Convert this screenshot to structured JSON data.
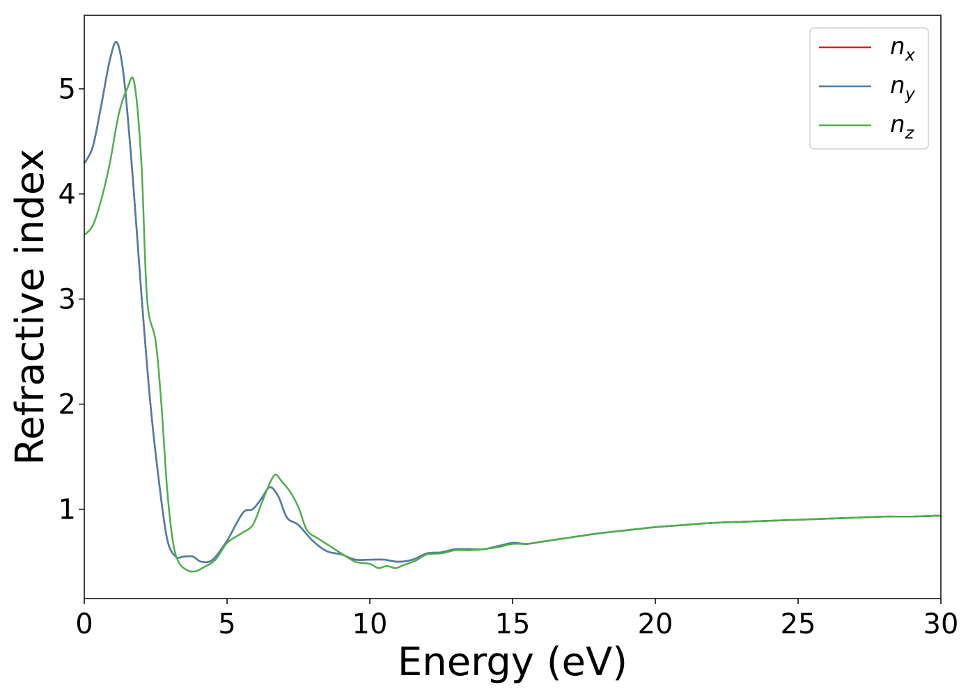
{
  "chart_data": {
    "type": "line",
    "title": "",
    "xlabel": "Energy (eV)",
    "ylabel": "Refractive index",
    "xlim": [
      0,
      30
    ],
    "ylim": [
      0.15,
      5.7
    ],
    "xticks": [
      0,
      5,
      10,
      15,
      20,
      25,
      30
    ],
    "yticks": [
      1,
      2,
      3,
      4,
      5
    ],
    "grid": false,
    "legend_position": "top-right",
    "series": [
      {
        "name": "n_x",
        "legend_base": "n",
        "legend_sub": "x",
        "color": "#e41a1c",
        "x": [
          0,
          0.3,
          0.6,
          0.9,
          1.15,
          1.4,
          1.7,
          2.0,
          2.3,
          2.6,
          2.9,
          3.2,
          3.5,
          3.8,
          4.1,
          4.5,
          5.0,
          5.3,
          5.6,
          5.9,
          6.2,
          6.5,
          6.8,
          7.1,
          7.5,
          8.0,
          8.5,
          9.0,
          9.5,
          10.0,
          10.5,
          11.0,
          11.5,
          12.0,
          12.5,
          13.0,
          13.5,
          14.0,
          14.5,
          15.0,
          15.5,
          16.0,
          17.0,
          18.0,
          19.0,
          20.0,
          21.0,
          22.0,
          23.0,
          24.0,
          25.0,
          26.0,
          27.0,
          28.0,
          29.0,
          30.0
        ],
        "y": [
          4.29,
          4.45,
          4.85,
          5.28,
          5.44,
          5.08,
          4.15,
          3.05,
          2.05,
          1.3,
          0.72,
          0.55,
          0.55,
          0.55,
          0.5,
          0.52,
          0.7,
          0.85,
          0.98,
          1.0,
          1.1,
          1.21,
          1.12,
          0.92,
          0.85,
          0.7,
          0.6,
          0.57,
          0.52,
          0.52,
          0.52,
          0.5,
          0.52,
          0.58,
          0.59,
          0.62,
          0.62,
          0.62,
          0.65,
          0.68,
          0.67,
          0.69,
          0.73,
          0.77,
          0.8,
          0.83,
          0.85,
          0.87,
          0.88,
          0.89,
          0.9,
          0.91,
          0.92,
          0.93,
          0.93,
          0.94
        ]
      },
      {
        "name": "n_y",
        "legend_base": "n",
        "legend_sub": "y",
        "color": "#4a7ea8",
        "x": [
          0,
          0.3,
          0.6,
          0.9,
          1.15,
          1.4,
          1.7,
          2.0,
          2.3,
          2.6,
          2.9,
          3.2,
          3.5,
          3.8,
          4.1,
          4.5,
          5.0,
          5.3,
          5.6,
          5.9,
          6.2,
          6.5,
          6.8,
          7.1,
          7.5,
          8.0,
          8.5,
          9.0,
          9.5,
          10.0,
          10.5,
          11.0,
          11.5,
          12.0,
          12.5,
          13.0,
          13.5,
          14.0,
          14.5,
          15.0,
          15.5,
          16.0,
          17.0,
          18.0,
          19.0,
          20.0,
          21.0,
          22.0,
          23.0,
          24.0,
          25.0,
          26.0,
          27.0,
          28.0,
          29.0,
          30.0
        ],
        "y": [
          4.29,
          4.45,
          4.85,
          5.28,
          5.44,
          5.08,
          4.15,
          3.05,
          2.05,
          1.3,
          0.72,
          0.55,
          0.55,
          0.55,
          0.5,
          0.52,
          0.7,
          0.85,
          0.98,
          1.0,
          1.1,
          1.21,
          1.12,
          0.92,
          0.85,
          0.7,
          0.6,
          0.57,
          0.52,
          0.52,
          0.52,
          0.5,
          0.52,
          0.58,
          0.59,
          0.62,
          0.62,
          0.62,
          0.65,
          0.68,
          0.67,
          0.69,
          0.73,
          0.77,
          0.8,
          0.83,
          0.85,
          0.87,
          0.88,
          0.89,
          0.9,
          0.91,
          0.92,
          0.93,
          0.93,
          0.94
        ]
      },
      {
        "name": "n_z",
        "legend_base": "n",
        "legend_sub": "z",
        "color": "#4daf4a",
        "x": [
          0,
          0.3,
          0.6,
          0.9,
          1.2,
          1.5,
          1.75,
          2.0,
          2.2,
          2.5,
          2.7,
          2.9,
          3.1,
          3.3,
          3.6,
          3.9,
          4.2,
          4.6,
          5.0,
          5.5,
          5.9,
          6.2,
          6.5,
          6.7,
          6.9,
          7.2,
          7.5,
          7.8,
          8.2,
          8.6,
          9.0,
          9.5,
          10.0,
          10.3,
          10.6,
          10.9,
          11.2,
          11.6,
          12.0,
          12.5,
          13.0,
          13.5,
          14.0,
          14.5,
          15.0,
          15.5,
          16.0,
          17.0,
          18.0,
          19.0,
          20.0,
          21.0,
          22.0,
          23.0,
          24.0,
          25.0,
          26.0,
          27.0,
          28.0,
          29.0,
          30.0
        ],
        "y": [
          3.61,
          3.7,
          3.95,
          4.3,
          4.75,
          5.0,
          5.06,
          4.3,
          3.0,
          2.6,
          2.0,
          1.2,
          0.7,
          0.5,
          0.42,
          0.41,
          0.45,
          0.52,
          0.68,
          0.77,
          0.85,
          1.05,
          1.25,
          1.33,
          1.27,
          1.17,
          1.02,
          0.8,
          0.72,
          0.65,
          0.58,
          0.5,
          0.48,
          0.44,
          0.46,
          0.44,
          0.47,
          0.51,
          0.57,
          0.58,
          0.61,
          0.61,
          0.62,
          0.64,
          0.67,
          0.67,
          0.69,
          0.73,
          0.77,
          0.8,
          0.83,
          0.85,
          0.87,
          0.88,
          0.89,
          0.9,
          0.91,
          0.92,
          0.93,
          0.93,
          0.94
        ]
      }
    ]
  }
}
